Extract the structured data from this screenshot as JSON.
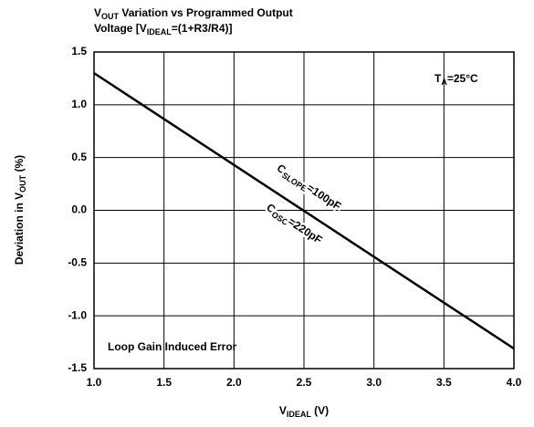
{
  "chart_data": {
    "type": "line",
    "title": [
      [
        "V",
        "OUT",
        " Variation vs Programmed Output"
      ],
      [
        "Voltage [V",
        "IDEAL",
        "=(1+R3/R4)]"
      ]
    ],
    "x_label": [
      "V",
      "IDEAL",
      " (V)"
    ],
    "y_label": [
      "Deviation in V",
      "OUT",
      " (%)"
    ],
    "annotations": [
      [
        "T",
        "A",
        "=25°C"
      ],
      [
        "C",
        "SLOPE",
        "=100pF"
      ],
      [
        "C",
        "OSC",
        "=220pF"
      ],
      [
        "Loop Gain Induced Error"
      ]
    ],
    "x": [
      1.0,
      4.0
    ],
    "series": [
      {
        "name": "Deviation",
        "color": "#000000",
        "values": [
          1.3,
          -1.31
        ]
      }
    ],
    "xlim": [
      1.0,
      4.0
    ],
    "xticks": [
      {
        "value": 1,
        "label": "1.0"
      },
      1.5,
      {
        "value": 2,
        "label": "2.0"
      },
      2.5,
      {
        "value": 3,
        "label": "3.0"
      },
      3.5,
      {
        "value": 4,
        "label": "4.0"
      }
    ],
    "ylim": [
      -1.5,
      1.5
    ],
    "yticks": [
      1.5,
      {
        "value": 1,
        "label": "1.0"
      },
      0.5,
      {
        "value": 0,
        "label": "0.0"
      },
      -0.5,
      {
        "value": -1,
        "label": "-1.0"
      },
      -1.5
    ],
    "grid": true
  }
}
